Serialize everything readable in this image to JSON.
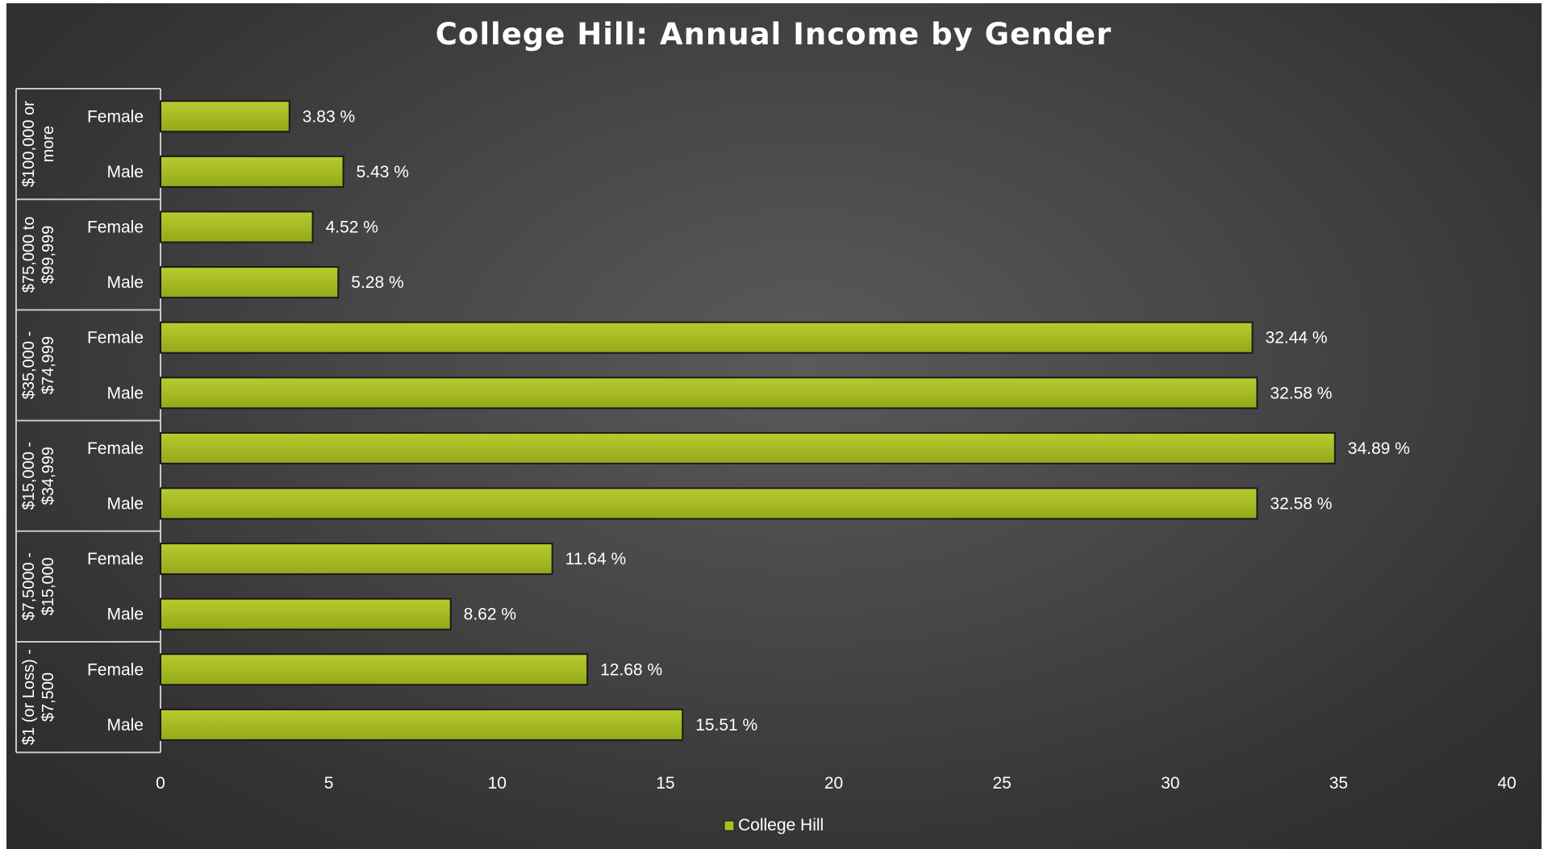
{
  "chart_data": {
    "type": "bar",
    "orientation": "horizontal",
    "title": "College Hill: Annual Income by Gender",
    "xlabel": "",
    "ylabel": "",
    "xlim": [
      0,
      40
    ],
    "x_ticks": [
      "0",
      "5",
      "10",
      "15",
      "20",
      "25",
      "30",
      "35",
      "40"
    ],
    "grid": false,
    "legend_position": "bottom",
    "value_suffix": " %",
    "groups": [
      {
        "label": "$100,000 or more",
        "label_lines": [
          "$100,000 or",
          "more"
        ],
        "categories": [
          "Female",
          "Male"
        ],
        "values": [
          3.83,
          5.43
        ]
      },
      {
        "label": "$75,000 to $99,999",
        "label_lines": [
          "$75,000 to",
          "$99,999"
        ],
        "categories": [
          "Female",
          "Male"
        ],
        "values": [
          4.52,
          5.28
        ]
      },
      {
        "label": "$35,000 - $74,999",
        "label_lines": [
          "$35,000 -",
          "$74,999"
        ],
        "categories": [
          "Female",
          "Male"
        ],
        "values": [
          32.44,
          32.58
        ]
      },
      {
        "label": "$15,000 - $34,999",
        "label_lines": [
          "$15,000 -",
          "$34,999"
        ],
        "categories": [
          "Female",
          "Male"
        ],
        "values": [
          34.89,
          32.58
        ]
      },
      {
        "label": "$7,5000 - $15,000",
        "label_lines": [
          "$7,5000 -",
          "$15,000"
        ],
        "categories": [
          "Female",
          "Male"
        ],
        "values": [
          11.64,
          8.62
        ]
      },
      {
        "label": "$1 (or Loss) - $7,500",
        "label_lines": [
          "$1 (or Loss) -",
          "$7,500"
        ],
        "categories": [
          "Female",
          "Male"
        ],
        "values": [
          12.68,
          15.51
        ]
      }
    ],
    "series": [
      {
        "name": "College Hill",
        "color": "#a9bf22"
      }
    ]
  },
  "colors": {
    "bar_fill_top": "#b8cc2e",
    "bar_fill_bottom": "#94a81a",
    "bar_stroke": "#1a1a1a",
    "axis_line": "#c8c8c8",
    "text": "#ffffff"
  }
}
